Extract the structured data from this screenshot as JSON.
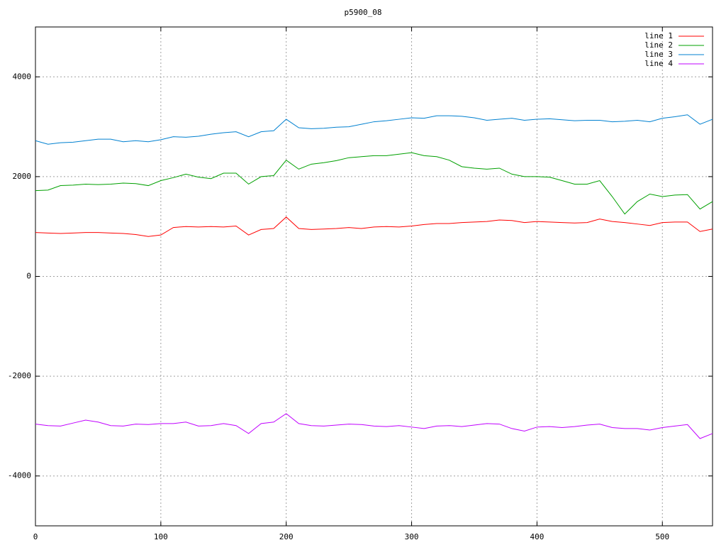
{
  "chart_data": {
    "type": "line",
    "title": "p5900_08",
    "x": [
      0,
      10,
      20,
      30,
      40,
      50,
      60,
      70,
      80,
      90,
      100,
      110,
      120,
      130,
      140,
      150,
      160,
      170,
      180,
      190,
      200,
      210,
      220,
      230,
      240,
      250,
      260,
      270,
      280,
      290,
      300,
      310,
      320,
      330,
      340,
      350,
      360,
      370,
      380,
      390,
      400,
      410,
      420,
      430,
      440,
      450,
      460,
      470,
      480,
      490,
      500,
      510,
      520,
      530,
      540
    ],
    "series": [
      {
        "name": "line 1",
        "color": "#ff0000",
        "values": [
          880,
          870,
          860,
          870,
          880,
          880,
          870,
          860,
          840,
          800,
          830,
          980,
          1000,
          990,
          1000,
          990,
          1010,
          830,
          940,
          960,
          1190,
          960,
          940,
          950,
          960,
          980,
          960,
          990,
          1000,
          990,
          1010,
          1040,
          1060,
          1060,
          1080,
          1090,
          1100,
          1130,
          1120,
          1080,
          1100,
          1090,
          1080,
          1070,
          1080,
          1150,
          1100,
          1080,
          1050,
          1020,
          1080,
          1090,
          1090,
          900,
          950
        ]
      },
      {
        "name": "line 2",
        "color": "#00a000",
        "values": [
          1720,
          1730,
          1820,
          1830,
          1850,
          1840,
          1850,
          1870,
          1860,
          1820,
          1920,
          1980,
          2050,
          1990,
          1960,
          2070,
          2070,
          1850,
          2000,
          2020,
          2330,
          2150,
          2250,
          2280,
          2320,
          2380,
          2400,
          2420,
          2420,
          2450,
          2480,
          2420,
          2400,
          2330,
          2200,
          2170,
          2150,
          2170,
          2050,
          2000,
          2000,
          1990,
          1920,
          1850,
          1850,
          1920,
          1600,
          1250,
          1500,
          1650,
          1600,
          1630,
          1640,
          1350,
          1500
        ]
      },
      {
        "name": "line 3",
        "color": "#0080d0",
        "values": [
          2720,
          2650,
          2680,
          2690,
          2720,
          2750,
          2750,
          2700,
          2720,
          2700,
          2740,
          2800,
          2790,
          2810,
          2850,
          2880,
          2900,
          2800,
          2900,
          2920,
          3150,
          2980,
          2960,
          2970,
          2990,
          3000,
          3050,
          3100,
          3120,
          3150,
          3180,
          3170,
          3220,
          3220,
          3210,
          3180,
          3130,
          3150,
          3170,
          3130,
          3150,
          3160,
          3140,
          3120,
          3130,
          3130,
          3100,
          3110,
          3130,
          3100,
          3170,
          3200,
          3240,
          3050,
          3150
        ]
      },
      {
        "name": "line 4",
        "color": "#c000ff",
        "values": [
          -2960,
          -2990,
          -3000,
          -2940,
          -2880,
          -2920,
          -2990,
          -3000,
          -2960,
          -2970,
          -2950,
          -2950,
          -2920,
          -3000,
          -2990,
          -2950,
          -2990,
          -3150,
          -2950,
          -2920,
          -2750,
          -2950,
          -2990,
          -3000,
          -2980,
          -2960,
          -2970,
          -3000,
          -3010,
          -2990,
          -3020,
          -3050,
          -3000,
          -2990,
          -3010,
          -2980,
          -2950,
          -2960,
          -3050,
          -3100,
          -3020,
          -3010,
          -3030,
          -3010,
          -2980,
          -2960,
          -3030,
          -3050,
          -3050,
          -3080,
          -3030,
          -3000,
          -2970,
          -3250,
          -3150
        ]
      }
    ],
    "xlim": [
      0,
      540
    ],
    "ylim": [
      -5000,
      5000
    ],
    "xticks": [
      0,
      100,
      200,
      300,
      400,
      500
    ],
    "yticks": [
      -4000,
      -2000,
      0,
      2000,
      4000
    ],
    "grid": true,
    "legend": "top-right"
  }
}
